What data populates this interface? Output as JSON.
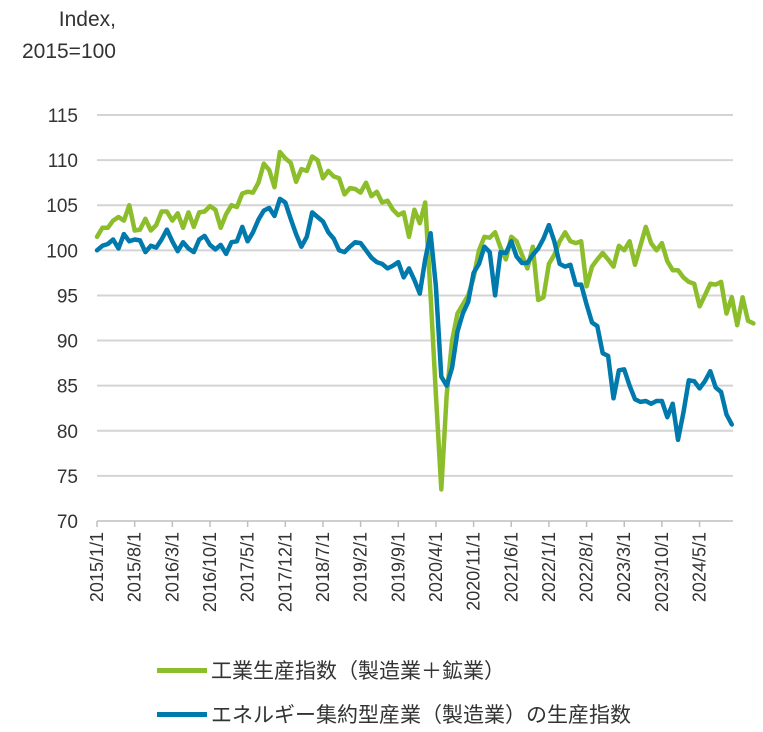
{
  "chart_data": {
    "type": "line",
    "ylabel": "Index, 2015=100",
    "ylabel_lines": [
      "Index,",
      "2015=100"
    ],
    "ylim": [
      70,
      115
    ],
    "yticks": [
      70,
      75,
      80,
      85,
      90,
      95,
      100,
      105,
      110,
      115
    ],
    "grid": true,
    "legend_position": "bottom",
    "x_start": "2015/1",
    "x_frequency": "monthly",
    "xtick_labels": [
      "2015/1/1",
      "2015/8/1",
      "2016/3/1",
      "2016/10/1",
      "2017/5/1",
      "2017/12/1",
      "2018/7/1",
      "2019/2/1",
      "2019/9/1",
      "2020/4/1",
      "2020/11/1",
      "2021/6/1",
      "2022/1/1",
      "2022/8/1",
      "2023/3/1",
      "2023/10/1",
      "2024/5/1"
    ],
    "series": [
      {
        "name": "工業生産指数（製造業＋鉱業）",
        "color": "#8cbd2b",
        "values": [
          101.5,
          102.5,
          102.5,
          103.3,
          103.7,
          103.3,
          105,
          102.2,
          102.3,
          103.5,
          102.2,
          102.8,
          104.3,
          104.3,
          103.3,
          104.1,
          102.5,
          104.2,
          102.6,
          104.2,
          104.3,
          104.9,
          104.5,
          102.5,
          104,
          105,
          104.8,
          106.3,
          106.5,
          106.4,
          107.5,
          109.6,
          108.9,
          107,
          110.9,
          110.2,
          109.7,
          107.6,
          109,
          108.8,
          110.4,
          110,
          108,
          108.8,
          108.2,
          108,
          106.2,
          106.9,
          106.8,
          106.4,
          107.5,
          106,
          106.5,
          105.3,
          105.5,
          104.5,
          103.9,
          104.2,
          101.5,
          104.5,
          103,
          105.3,
          95,
          84,
          73.5,
          84,
          90,
          93,
          94,
          95,
          97,
          100,
          101.5,
          101.4,
          102,
          100.3,
          99,
          101.5,
          101,
          99.5,
          98,
          100.4,
          94.5,
          94.8,
          98.5,
          99.5,
          101,
          102,
          101,
          100.8,
          101,
          96,
          98.2,
          99,
          99.7,
          99,
          98.2,
          100.5,
          100,
          101,
          98.4,
          100.5,
          102.6,
          100.8,
          100,
          100.8,
          98.8,
          97.8,
          97.8,
          97,
          96.5,
          96.3,
          93.8,
          95,
          96.3,
          96.2,
          96.5,
          93,
          94.8,
          91.7,
          94.8,
          92.2,
          91.9
        ]
      },
      {
        "name": "エネルギー集約型産業（製造業）の生産指数",
        "color": "#0079ad",
        "values": [
          100,
          100.5,
          100.7,
          101.2,
          100.2,
          101.8,
          101,
          101.2,
          101.1,
          99.8,
          100.5,
          100.3,
          101.2,
          102.3,
          101,
          99.9,
          100.9,
          100.2,
          99.8,
          101.2,
          101.6,
          100.6,
          100.1,
          100.6,
          99.6,
          100.9,
          101,
          102.6,
          101,
          102,
          103.4,
          104.4,
          104.7,
          103.8,
          105.7,
          105.3,
          103.5,
          101.8,
          100.4,
          101.5,
          104.2,
          103.7,
          103.2,
          102,
          101.3,
          100,
          99.8,
          100.4,
          100.9,
          100.8,
          100,
          99.2,
          98.7,
          98.5,
          98,
          98.3,
          98.7,
          97,
          98,
          96.7,
          95.2,
          99,
          101.9,
          96,
          86,
          85,
          87,
          91,
          93,
          94.3,
          97.5,
          98.5,
          100.4,
          99.8,
          95,
          99.8,
          99.7,
          101,
          99.3,
          98.6,
          98.6,
          99.5,
          100.2,
          101.3,
          102.8,
          101,
          98.5,
          98.2,
          98.4,
          96.2,
          96.2,
          94,
          92,
          91.6,
          88.6,
          88.3,
          83.6,
          86.7,
          86.8,
          85,
          83.5,
          83.2,
          83.3,
          83,
          83.3,
          83.3,
          81.5,
          83,
          79,
          82,
          85.6,
          85.5,
          84.7,
          85.5,
          86.6,
          84.8,
          84.3,
          81.8,
          80.7
        ]
      }
    ]
  }
}
